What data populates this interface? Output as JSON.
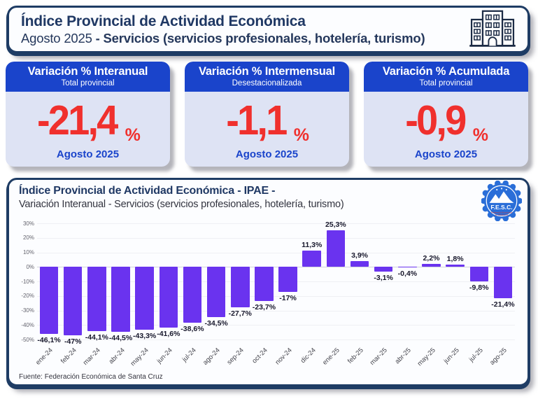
{
  "header": {
    "title": "Índice Provincial de Actividad Económica",
    "subtitle_period": "Agosto 2025 ",
    "subtitle_bold": "- Servicios (servicios profesionales, hotelería, turismo)"
  },
  "kpi_cards": [
    {
      "title": "Variación % Interanual",
      "subtitle": "Total provincial",
      "value": "-21,4",
      "unit": "%",
      "period": "Agosto 2025"
    },
    {
      "title": "Variación % Intermensual",
      "subtitle": "Desestacionalizada",
      "value": "-1,1",
      "unit": "%",
      "period": "Agosto 2025"
    },
    {
      "title": "Variación % Acumulada",
      "subtitle": "Total provincial",
      "value": "-0,9",
      "unit": "%",
      "period": "Agosto 2025"
    }
  ],
  "chart_section": {
    "title": "Índice Provincial de Actividad Económica - IPAE -",
    "subtitle": "Variación Interanual - Servicios (servicios profesionales, hotelería, turismo)",
    "logo_text": "F.E.S.C.",
    "logo_subtext_line1": "Federación Económica",
    "logo_subtext_line2": "de Santa Cruz",
    "source": "Fuente: Federación Económica de Santa Cruz"
  },
  "chart_data": {
    "type": "bar",
    "title": "Índice Provincial de Actividad Económica - IPAE -",
    "subtitle": "Variación Interanual - Servicios (servicios profesionales, hotelería, turismo)",
    "xlabel": "",
    "ylabel": "",
    "categories": [
      "ene-24",
      "feb-24",
      "mar-24",
      "abr-24",
      "may-24",
      "jun-24",
      "jul-24",
      "ago-24",
      "sep-24",
      "oct-24",
      "nov-24",
      "dic-24",
      "ene-25",
      "feb-25",
      "mar-25",
      "abr-25",
      "may-25",
      "jun-25",
      "jul-25",
      "ago-25"
    ],
    "values": [
      -46.1,
      -47,
      -44.1,
      -44.5,
      -43.3,
      -41.6,
      -38.6,
      -34.5,
      -27.7,
      -23.7,
      -17,
      11.3,
      25.3,
      3.9,
      -3.1,
      -0.4,
      2.2,
      1.8,
      -9.8,
      -21.4
    ],
    "value_labels": [
      "-46,1%",
      "-47%",
      "-44,1%",
      "-44,5%",
      "-43,3%",
      "-41,6%",
      "-38,6%",
      "-34,5%",
      "-27,7%",
      "-23,7%",
      "-17%",
      "11,3%",
      "25,3%",
      "3,9%",
      "-3,1%",
      "-0,4%",
      "2,2%",
      "1,8%",
      "-9,8%",
      "-21,4%"
    ],
    "ylim": [
      -50,
      30
    ],
    "yticks": [
      30,
      20,
      10,
      0,
      -10,
      -20,
      -30,
      -40,
      -50
    ],
    "ytick_labels": [
      "30%",
      "20%",
      "10%",
      "0%",
      "-10%",
      "-20%",
      "-30%",
      "-40%",
      "-50%"
    ],
    "bar_color": "#6a33ef",
    "grid": true,
    "legend_position": "none"
  },
  "colors": {
    "accent_blue": "#1a44cb",
    "navy": "#1e3c64",
    "value_red": "#f0302d",
    "bar_purple": "#6a33ef",
    "card_body": "#dee3f4"
  }
}
